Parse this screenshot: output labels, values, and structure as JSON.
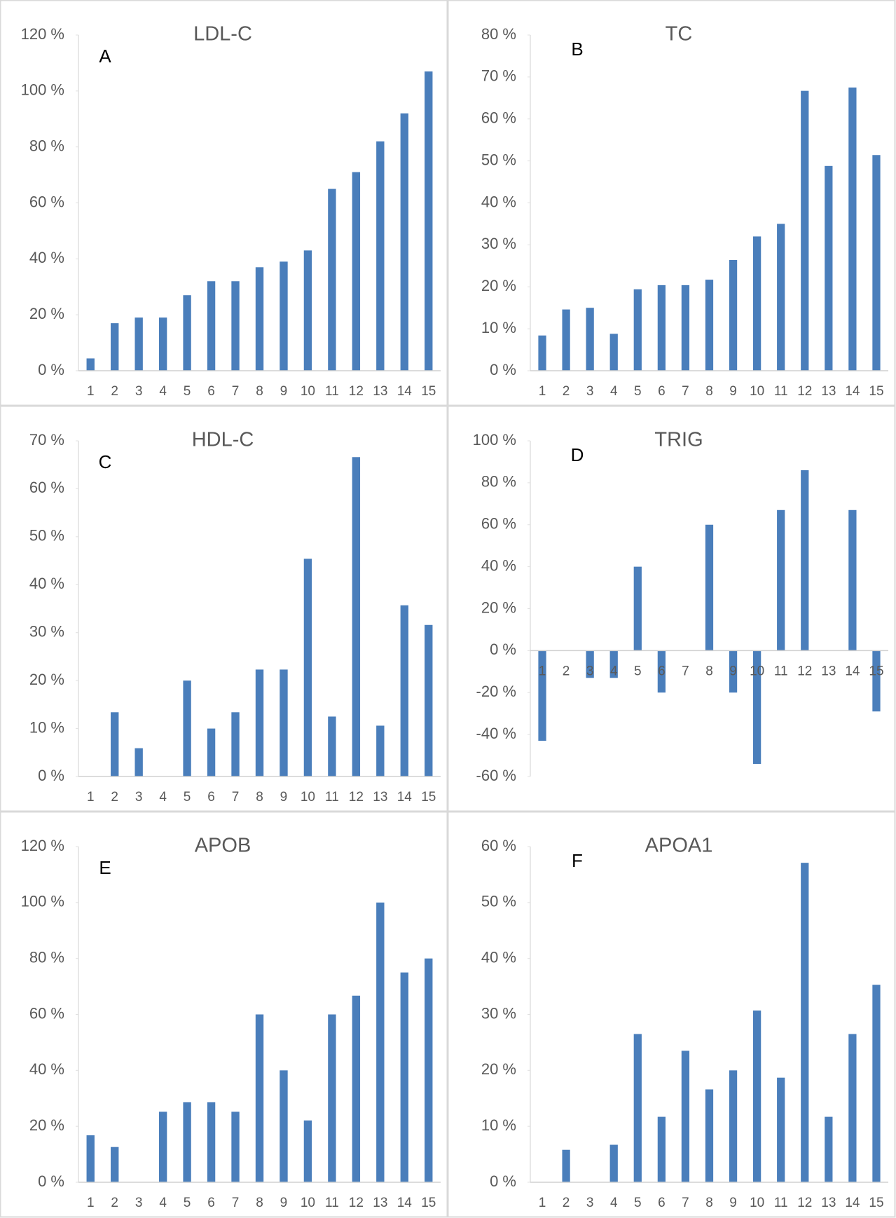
{
  "chart_data": [
    {
      "type": "bar",
      "title": "LDL-C",
      "panel_label": "A",
      "color": "#4a7ebb",
      "categories": [
        "1",
        "2",
        "3",
        "4",
        "5",
        "6",
        "7",
        "8",
        "9",
        "10",
        "11",
        "12",
        "13",
        "14",
        "15"
      ],
      "values": [
        4.4,
        17,
        19,
        19,
        27,
        32,
        32,
        37,
        39,
        43,
        65,
        71,
        82,
        92,
        107
      ],
      "ylim": [
        0,
        120
      ],
      "yticks": [
        {
          "value": 0,
          "label": "0 %"
        },
        {
          "value": 20,
          "label": "20 %"
        },
        {
          "value": 40,
          "label": "40 %"
        },
        {
          "value": 60,
          "label": "60 %"
        },
        {
          "value": 80,
          "label": "80 %"
        },
        {
          "value": 100,
          "label": "100 %"
        },
        {
          "value": 120,
          "label": "120 %"
        }
      ]
    },
    {
      "type": "bar",
      "title": "TC",
      "panel_label": "B",
      "color": "#4a7ebb",
      "categories": [
        "1",
        "2",
        "3",
        "4",
        "5",
        "6",
        "7",
        "8",
        "9",
        "10",
        "11",
        "12",
        "13",
        "14",
        "15"
      ],
      "values": [
        8.4,
        14.6,
        15,
        8.8,
        19.4,
        20.4,
        20.4,
        21.7,
        26.4,
        32,
        35,
        66.7,
        48.8,
        67.5,
        51.4
      ],
      "ylim": [
        0,
        80
      ],
      "yticks": [
        {
          "value": 0,
          "label": "0 %"
        },
        {
          "value": 10,
          "label": "10 %"
        },
        {
          "value": 20,
          "label": "20 %"
        },
        {
          "value": 30,
          "label": "30 %"
        },
        {
          "value": 40,
          "label": "40 %"
        },
        {
          "value": 50,
          "label": "50 %"
        },
        {
          "value": 60,
          "label": "60 %"
        },
        {
          "value": 70,
          "label": "70 %"
        },
        {
          "value": 80,
          "label": "80 %"
        }
      ]
    },
    {
      "type": "bar",
      "title": "HDL-C",
      "panel_label": "C",
      "color": "#4a7ebb",
      "categories": [
        "1",
        "2",
        "3",
        "4",
        "5",
        "6",
        "7",
        "8",
        "9",
        "10",
        "11",
        "12",
        "13",
        "14",
        "15"
      ],
      "values": [
        0,
        13.4,
        5.9,
        0,
        20,
        10,
        13.4,
        22.3,
        22.3,
        45.4,
        12.5,
        66.6,
        10.6,
        35.7,
        31.6
      ],
      "ylim": [
        0,
        70
      ],
      "yticks": [
        {
          "value": 0,
          "label": "0 %"
        },
        {
          "value": 10,
          "label": "10 %"
        },
        {
          "value": 20,
          "label": "20 %"
        },
        {
          "value": 30,
          "label": "30 %"
        },
        {
          "value": 40,
          "label": "40 %"
        },
        {
          "value": 50,
          "label": "50 %"
        },
        {
          "value": 60,
          "label": "60 %"
        },
        {
          "value": 70,
          "label": "70 %"
        }
      ]
    },
    {
      "type": "bar",
      "title": "TRIG",
      "panel_label": "D",
      "color": "#4a7ebb",
      "categories": [
        "1",
        "2",
        "3",
        "4",
        "5",
        "6",
        "7",
        "8",
        "9",
        "10",
        "11",
        "12",
        "13",
        "14",
        "15"
      ],
      "values": [
        -43,
        0,
        -13,
        -13,
        40,
        -20,
        0,
        60,
        -20,
        -54,
        67,
        86,
        0,
        67,
        -29
      ],
      "ylim": [
        -60,
        100
      ],
      "yticks": [
        {
          "value": -60,
          "label": "-60 %"
        },
        {
          "value": -40,
          "label": "-40 %"
        },
        {
          "value": -20,
          "label": "-20 %"
        },
        {
          "value": 0,
          "label": "0 %"
        },
        {
          "value": 20,
          "label": "20 %"
        },
        {
          "value": 40,
          "label": "40 %"
        },
        {
          "value": 60,
          "label": "60 %"
        },
        {
          "value": 80,
          "label": "80 %"
        },
        {
          "value": 100,
          "label": "100 %"
        }
      ]
    },
    {
      "type": "bar",
      "title": "APOB",
      "panel_label": "E",
      "color": "#4a7ebb",
      "categories": [
        "1",
        "2",
        "3",
        "4",
        "5",
        "6",
        "7",
        "8",
        "9",
        "10",
        "11",
        "12",
        "13",
        "14",
        "15"
      ],
      "values": [
        16.8,
        12.6,
        0,
        25.2,
        28.6,
        28.6,
        25.2,
        60,
        40,
        22.1,
        60,
        66.7,
        100,
        75,
        80
      ],
      "ylim": [
        0,
        120
      ],
      "yticks": [
        {
          "value": 0,
          "label": "0 %"
        },
        {
          "value": 20,
          "label": "20 %"
        },
        {
          "value": 40,
          "label": "40 %"
        },
        {
          "value": 60,
          "label": "60 %"
        },
        {
          "value": 80,
          "label": "80 %"
        },
        {
          "value": 100,
          "label": "100 %"
        },
        {
          "value": 120,
          "label": "120 %"
        }
      ]
    },
    {
      "type": "bar",
      "title": "APOA1",
      "panel_label": "F",
      "color": "#4a7ebb",
      "categories": [
        "1",
        "2",
        "3",
        "4",
        "5",
        "6",
        "7",
        "8",
        "9",
        "10",
        "11",
        "12",
        "13",
        "14",
        "15"
      ],
      "values": [
        0,
        5.8,
        0,
        6.7,
        26.5,
        11.7,
        23.5,
        16.6,
        20,
        30.7,
        18.7,
        57.1,
        11.7,
        26.5,
        35.3
      ],
      "ylim": [
        0,
        60
      ],
      "yticks": [
        {
          "value": 0,
          "label": "0 %"
        },
        {
          "value": 10,
          "label": "10 %"
        },
        {
          "value": 20,
          "label": "20 %"
        },
        {
          "value": 30,
          "label": "30 %"
        },
        {
          "value": 40,
          "label": "40 %"
        },
        {
          "value": 50,
          "label": "50 %"
        },
        {
          "value": 60,
          "label": "60 %"
        }
      ]
    }
  ]
}
